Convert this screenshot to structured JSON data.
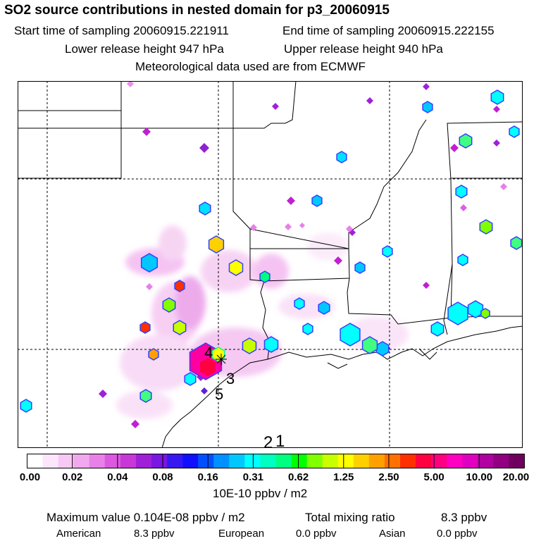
{
  "header": {
    "title": "SO2 source contributions in nested domain for p3_20060915",
    "start_label": "Start time of sampling 20060915.221911",
    "end_label": "End time of sampling 20060915.222155",
    "lower_label": "Lower release height  947 hPa",
    "upper_label": "Upper release height  940 hPa",
    "met_label": "Meteorological data used are from ECMWF"
  },
  "map": {
    "markers": [
      {
        "label": "4"
      },
      {
        "label": "3"
      },
      {
        "label": "5"
      },
      {
        "label": "2"
      },
      {
        "label": "1"
      }
    ]
  },
  "colorbar": {
    "colors": [
      "#ffffff",
      "#fde6fb",
      "#f8c8f5",
      "#f0a8ee",
      "#e880e8",
      "#dc58e0",
      "#c838d8",
      "#a020d8",
      "#7818e0",
      "#3818f0",
      "#1010ff",
      "#0050ff",
      "#0090ff",
      "#00c8ff",
      "#00ffff",
      "#00ffc0",
      "#00ff80",
      "#00ff00",
      "#80ff00",
      "#c8ff00",
      "#ffff00",
      "#ffd000",
      "#ffa000",
      "#ff7000",
      "#ff3000",
      "#ff0040",
      "#ff0080",
      "#ff00c0",
      "#e000c0",
      "#b000a0",
      "#900080",
      "#700060"
    ],
    "tick_labels": [
      "0.00",
      "0.02",
      "0.04",
      "0.08",
      "0.16",
      "0.31",
      "0.62",
      "1.25",
      "2.50",
      "5.00",
      "10.00",
      "20.00"
    ],
    "units": "10E-10 ppbv / m2"
  },
  "footer": {
    "max_label": "Maximum value  0.104E-08 ppbv / m2",
    "total_label": "Total mixing ratio",
    "total_value": "8.3 ppbv",
    "american_label": "American",
    "american_value": "8.3 ppbv",
    "european_label": "European",
    "european_value": "0.0 ppbv",
    "asian_label": "Asian",
    "asian_value": "0.0 ppbv"
  }
}
